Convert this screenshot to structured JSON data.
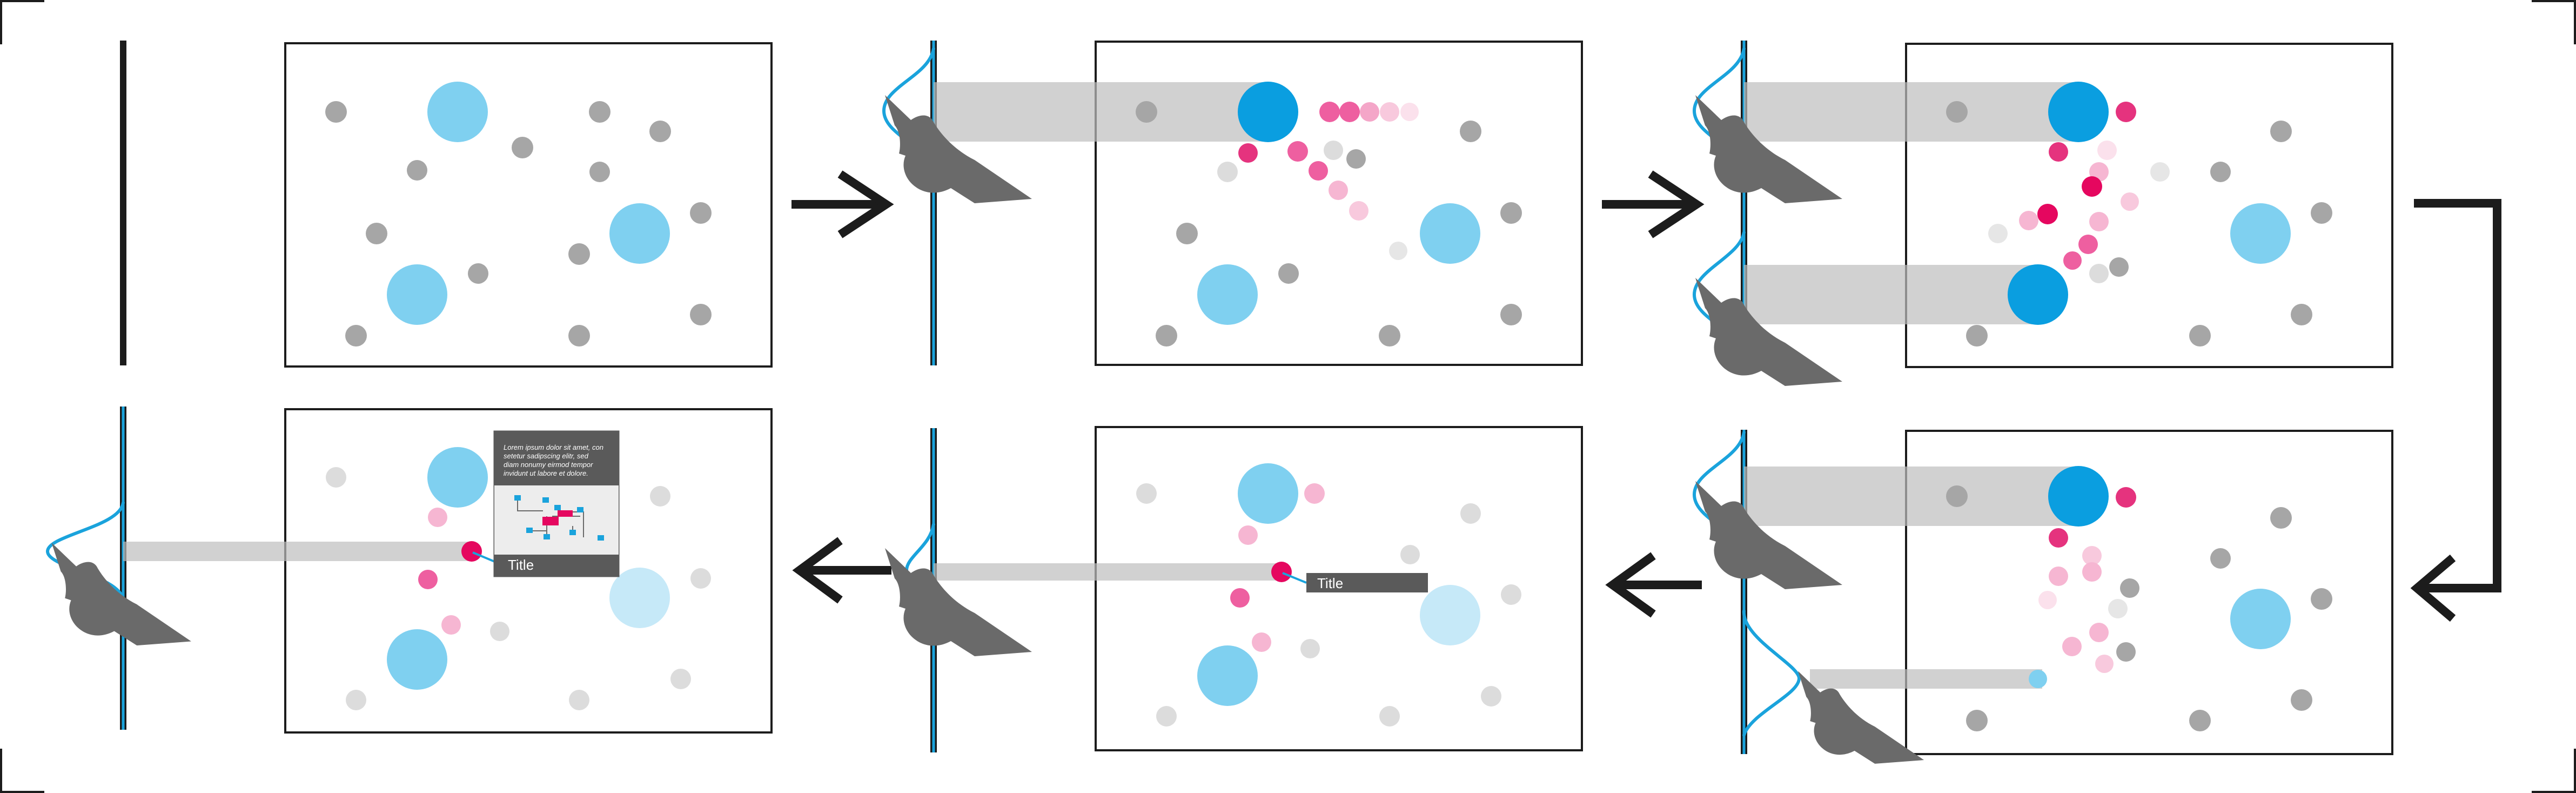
{
  "labels": {
    "tooltip_title": "Title",
    "card_title": "Title",
    "card_text": [
      "Lorem ipsum dolor sit amet, con",
      "setetur sadipscing elitr, sed",
      "diam nonumy eirmod tempor",
      "invidunt ut labore et dolore."
    ]
  },
  "icons": {
    "flow": "arrow-icon",
    "hand": "pointing-hand-icon",
    "card_graph": "mini-network-graph-icon"
  },
  "colors": {
    "frame": "#1c1c1c",
    "accent_blue": "#0a9ee0",
    "light_blue": "#7fd0f0",
    "pale_blue": "#c6e9f8",
    "gray_dot": "#a6a6a6",
    "light_gray_dot": "#dcdcdc",
    "magenta": "#e5075f",
    "pink": "#ee5fa0",
    "light_pink": "#f6b6d2",
    "beam": "#c8c8c8",
    "hand": "#6a6a6a",
    "label_bg": "#5a5a5a"
  }
}
